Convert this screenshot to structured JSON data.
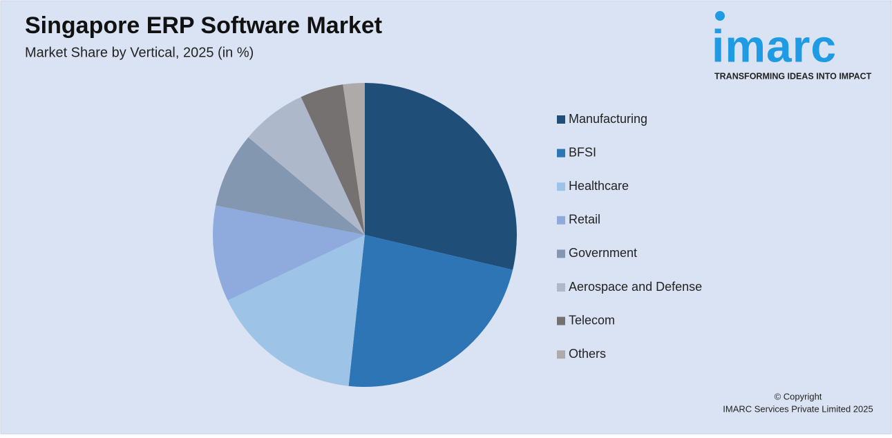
{
  "chart_data": {
    "type": "pie",
    "title": "Singapore ERP Software Market",
    "subtitle": "Market Share by Vertical, 2025 (in %)",
    "categories": [
      "Manufacturing",
      "BFSI",
      "Healthcare",
      "Retail",
      "Government",
      "Aerospace and Defense",
      "Telecom",
      "Others"
    ],
    "values": [
      28.7,
      23,
      16.2,
      10.2,
      8,
      7,
      4.6,
      2.3
    ],
    "colors": [
      "#1f4e79",
      "#2e75b6",
      "#9dc3e6",
      "#8faadc",
      "#8497b0",
      "#adb9ca",
      "#767171",
      "#aeaaaa"
    ],
    "legend": "right"
  },
  "logo": {
    "name": "imarc",
    "tagline": "TRANSFORMING IDEAS INTO IMPACT"
  },
  "copyright": {
    "line1": "© Copyright",
    "line2": "IMARC Services Private Limited 2025"
  }
}
